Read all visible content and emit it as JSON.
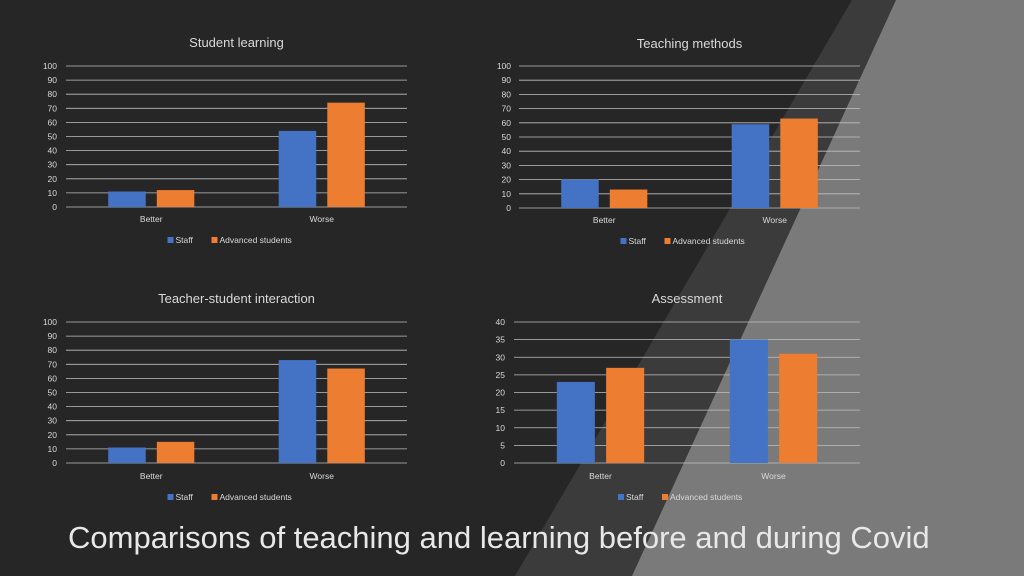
{
  "slide": {
    "title": "Comparisons of teaching and learning before and during Covid"
  },
  "colors": {
    "staff": "#4472c4",
    "advanced_students": "#ed7d31",
    "background": "#262626",
    "text": "#d9d9d9",
    "grid": "#bfbfbf"
  },
  "chart_data": [
    {
      "type": "bar",
      "title": "Student learning",
      "categories": [
        "Better",
        "Worse"
      ],
      "series": [
        {
          "name": "Staff",
          "values": [
            11,
            54
          ]
        },
        {
          "name": "Advanced students",
          "values": [
            12,
            74
          ]
        }
      ],
      "ylim": [
        0,
        100
      ],
      "yticks": [
        0,
        10,
        20,
        30,
        40,
        50,
        60,
        70,
        80,
        90,
        100
      ],
      "grid": true,
      "legend": "bottom"
    },
    {
      "type": "bar",
      "title": "Teaching methods",
      "categories": [
        "Better",
        "Worse"
      ],
      "series": [
        {
          "name": "Staff",
          "values": [
            20,
            59
          ]
        },
        {
          "name": "Advanced students",
          "values": [
            13,
            63
          ]
        }
      ],
      "ylim": [
        0,
        100
      ],
      "yticks": [
        0,
        10,
        20,
        30,
        40,
        50,
        60,
        70,
        80,
        90,
        100
      ],
      "grid": true,
      "legend": "bottom"
    },
    {
      "type": "bar",
      "title": "Teacher-student interaction",
      "categories": [
        "Better",
        "Worse"
      ],
      "series": [
        {
          "name": "Staff",
          "values": [
            11,
            73
          ]
        },
        {
          "name": "Advanced students",
          "values": [
            15,
            67
          ]
        }
      ],
      "ylim": [
        0,
        100
      ],
      "yticks": [
        0,
        10,
        20,
        30,
        40,
        50,
        60,
        70,
        80,
        90,
        100
      ],
      "grid": true,
      "legend": "bottom"
    },
    {
      "type": "bar",
      "title": "Assessment",
      "categories": [
        "Better",
        "Worse"
      ],
      "series": [
        {
          "name": "Staff",
          "values": [
            23,
            35
          ]
        },
        {
          "name": "Advanced students",
          "values": [
            27,
            31
          ]
        }
      ],
      "ylim": [
        0,
        40
      ],
      "yticks": [
        0,
        5,
        10,
        15,
        20,
        25,
        30,
        35,
        40
      ],
      "grid": true,
      "legend": "bottom"
    }
  ]
}
